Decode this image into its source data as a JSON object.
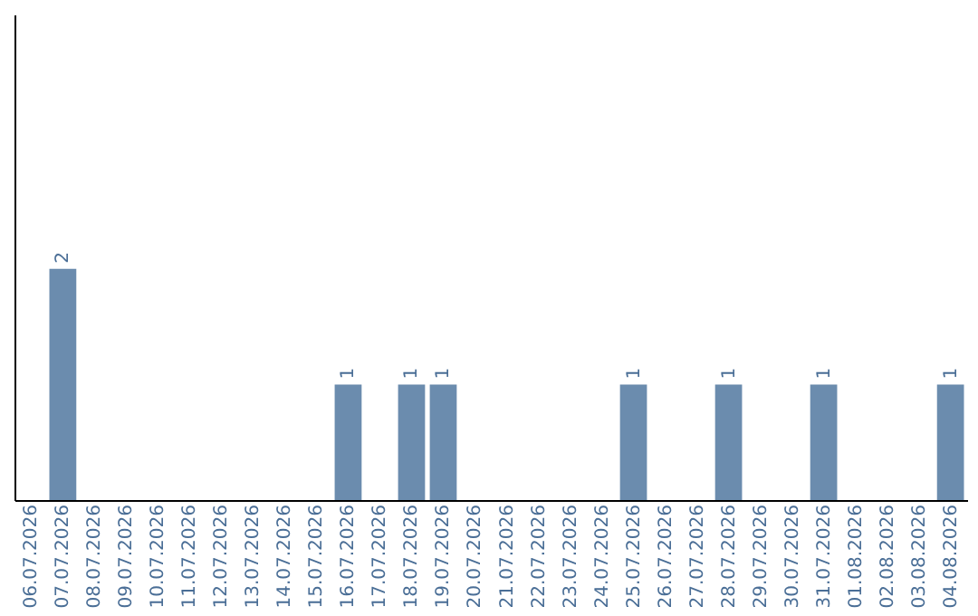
{
  "chart_data": {
    "type": "bar",
    "categories": [
      "06.07.2026",
      "07.07.2026",
      "08.07.2026",
      "09.07.2026",
      "10.07.2026",
      "11.07.2026",
      "12.07.2026",
      "13.07.2026",
      "14.07.2026",
      "15.07.2026",
      "16.07.2026",
      "17.07.2026",
      "18.07.2026",
      "19.07.2026",
      "20.07.2026",
      "21.07.2026",
      "22.07.2026",
      "23.07.2026",
      "24.07.2026",
      "25.07.2026",
      "26.07.2026",
      "27.07.2026",
      "28.07.2026",
      "29.07.2026",
      "30.07.2026",
      "31.07.2026",
      "01.08.2026",
      "02.08.2026",
      "03.08.2026",
      "04.08.2026"
    ],
    "values": [
      0,
      2,
      0,
      0,
      0,
      0,
      0,
      0,
      0,
      0,
      1,
      0,
      1,
      1,
      0,
      0,
      0,
      0,
      0,
      1,
      0,
      0,
      1,
      0,
      0,
      1,
      0,
      0,
      0,
      1
    ],
    "value_labels": [
      null,
      "2",
      null,
      null,
      null,
      null,
      null,
      null,
      null,
      null,
      "1",
      null,
      "1",
      "1",
      null,
      null,
      null,
      null,
      null,
      "1",
      null,
      null,
      "1",
      null,
      null,
      "1",
      null,
      null,
      null,
      "1"
    ],
    "color": "#6b8cae",
    "ylim": [
      0,
      4.2
    ],
    "grid": false
  }
}
